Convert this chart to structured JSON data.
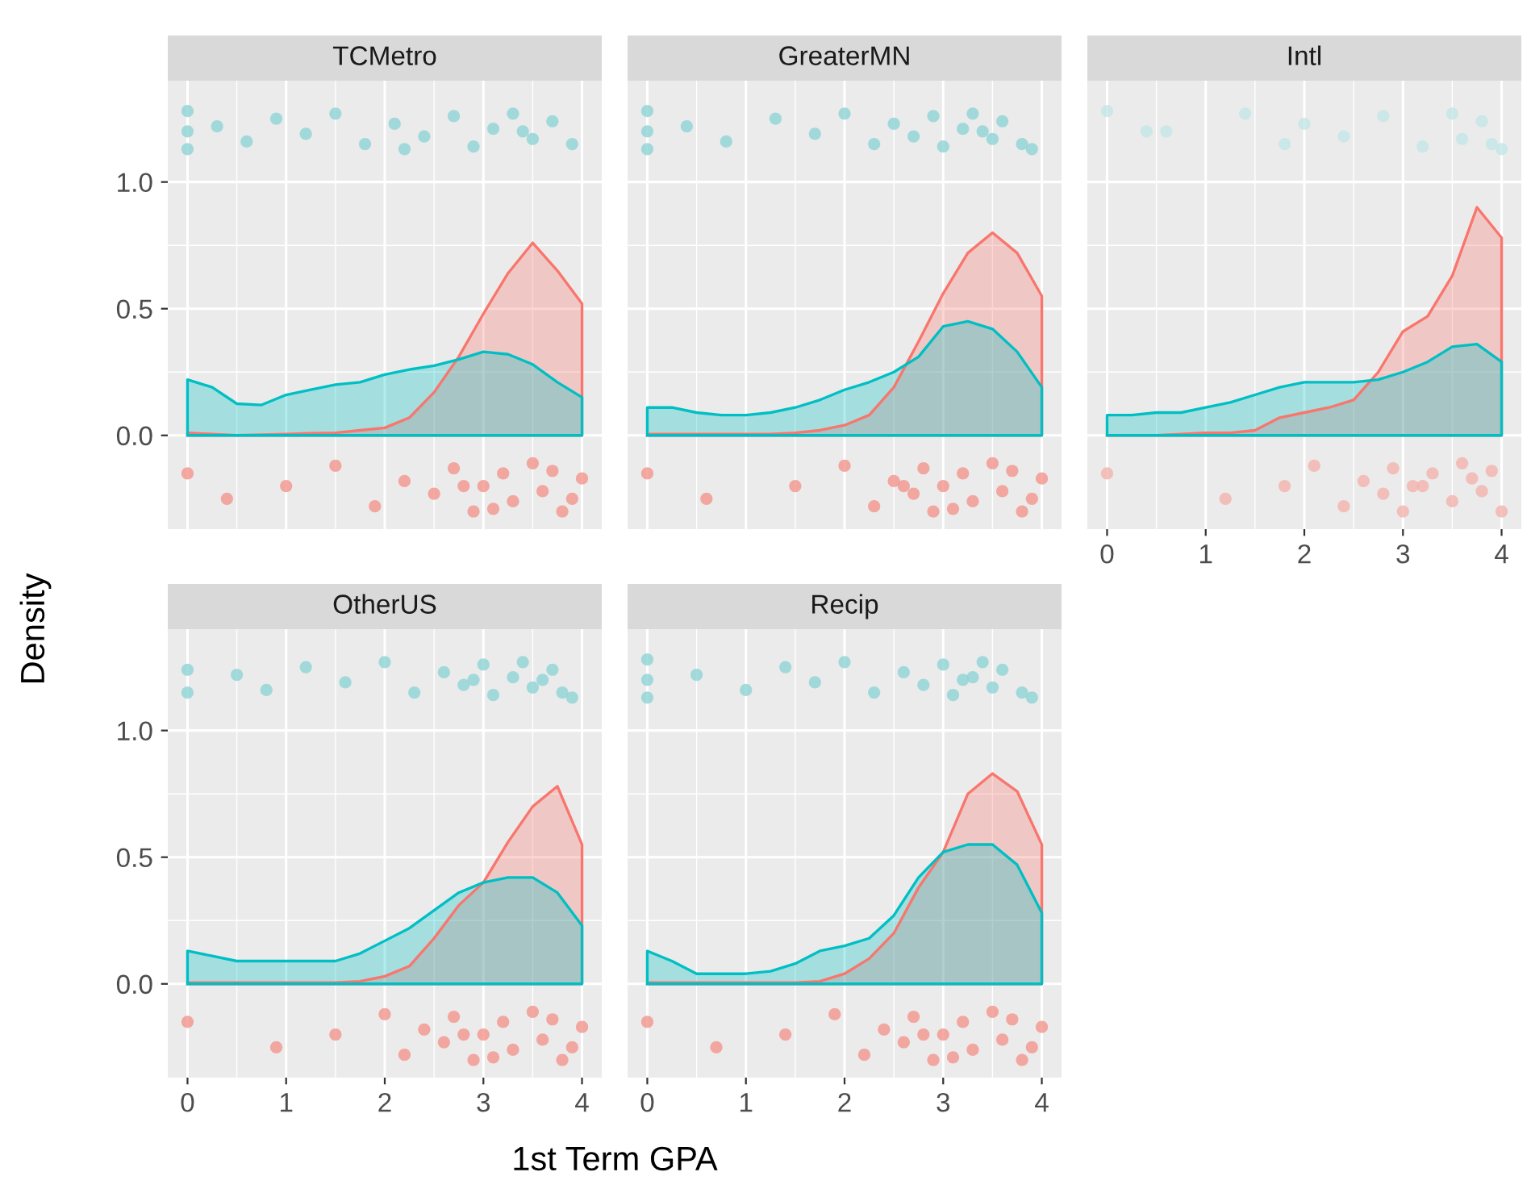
{
  "chart_data": [
    {
      "type": "area",
      "title": "TCMetro",
      "ylabel": "Density",
      "xlim": [
        -0.2,
        4.2
      ],
      "ylim": [
        -0.37,
        1.4
      ],
      "xticks": [
        0,
        1,
        2,
        3,
        4
      ],
      "yticks": [
        {
          "value": 0,
          "label": "0.0"
        },
        {
          "value": 0.5,
          "label": "0.5"
        },
        {
          "value": 1,
          "label": "1.0"
        }
      ],
      "tick_labels": "y",
      "grid": true,
      "series": [
        {
          "type": "area",
          "color": "#f8766d",
          "x": [
            0,
            0.25,
            0.5,
            0.75,
            1,
            1.25,
            1.5,
            1.75,
            2,
            2.25,
            2.5,
            2.75,
            3,
            3.25,
            3.5,
            3.75,
            4
          ],
          "values": [
            0.01,
            0.005,
            0,
            0.003,
            0.005,
            0.008,
            0.01,
            0.02,
            0.03,
            0.07,
            0.17,
            0.31,
            0.48,
            0.64,
            0.76,
            0.65,
            0.52
          ]
        },
        {
          "type": "area",
          "color": "#00bfc4",
          "x": [
            0,
            0.25,
            0.5,
            0.75,
            1,
            1.25,
            1.5,
            1.75,
            2,
            2.25,
            2.5,
            2.75,
            3,
            3.25,
            3.5,
            3.75,
            4
          ],
          "values": [
            0.22,
            0.19,
            0.125,
            0.12,
            0.16,
            0.18,
            0.2,
            0.21,
            0.24,
            0.26,
            0.275,
            0.3,
            0.33,
            0.32,
            0.28,
            0.21,
            0.15
          ]
        },
        {
          "type": "scatter",
          "color": "#8fd5d7",
          "x": [
            0,
            0,
            0,
            0.3,
            0.6,
            0.9,
            1.2,
            1.5,
            1.8,
            2.1,
            2.4,
            2.7,
            2.9,
            3.1,
            3.3,
            3.5,
            3.7,
            3.9,
            2.2,
            3.4
          ],
          "values": [
            1.28,
            1.2,
            1.13,
            1.22,
            1.16,
            1.25,
            1.19,
            1.27,
            1.15,
            1.23,
            1.18,
            1.26,
            1.14,
            1.21,
            1.27,
            1.17,
            1.24,
            1.15,
            1.13,
            1.2
          ]
        },
        {
          "type": "scatter",
          "color": "#f4958d",
          "x": [
            0,
            0.4,
            1.0,
            1.5,
            1.9,
            2.2,
            2.5,
            2.7,
            2.9,
            3.0,
            3.2,
            3.3,
            3.5,
            3.6,
            3.8,
            4.0,
            2.8,
            3.7,
            3.1,
            3.9
          ],
          "values": [
            -0.15,
            -0.25,
            -0.2,
            -0.12,
            -0.28,
            -0.18,
            -0.23,
            -0.13,
            -0.3,
            -0.2,
            -0.15,
            -0.26,
            -0.11,
            -0.22,
            -0.3,
            -0.17,
            -0.2,
            -0.14,
            -0.29,
            -0.25
          ]
        }
      ]
    },
    {
      "type": "area",
      "title": "GreaterMN",
      "xlim": [
        -0.2,
        4.2
      ],
      "ylim": [
        -0.37,
        1.4
      ],
      "xticks": [
        0,
        1,
        2,
        3,
        4
      ],
      "yticks": [
        0,
        0.5,
        1
      ],
      "tick_labels": false,
      "grid": true,
      "series": [
        {
          "type": "area",
          "color": "#f8766d",
          "x": [
            0,
            0.25,
            0.5,
            0.75,
            1,
            1.25,
            1.5,
            1.75,
            2,
            2.25,
            2.5,
            2.75,
            3,
            3.25,
            3.5,
            3.75,
            4
          ],
          "values": [
            0.005,
            0.005,
            0.005,
            0.005,
            0.005,
            0.005,
            0.01,
            0.02,
            0.04,
            0.08,
            0.19,
            0.37,
            0.56,
            0.72,
            0.8,
            0.72,
            0.55
          ]
        },
        {
          "type": "area",
          "color": "#00bfc4",
          "x": [
            0,
            0.25,
            0.5,
            0.75,
            1,
            1.25,
            1.5,
            1.75,
            2,
            2.25,
            2.5,
            2.75,
            3,
            3.25,
            3.5,
            3.75,
            4
          ],
          "values": [
            0.11,
            0.11,
            0.09,
            0.08,
            0.08,
            0.09,
            0.11,
            0.14,
            0.18,
            0.21,
            0.25,
            0.31,
            0.43,
            0.45,
            0.42,
            0.33,
            0.19
          ]
        },
        {
          "type": "scatter",
          "color": "#8fd5d7",
          "x": [
            0,
            0,
            0,
            0.4,
            0.8,
            1.3,
            1.7,
            2.0,
            2.3,
            2.5,
            2.7,
            2.9,
            3.0,
            3.2,
            3.3,
            3.5,
            3.6,
            3.8,
            3.9,
            3.4
          ],
          "values": [
            1.28,
            1.2,
            1.13,
            1.22,
            1.16,
            1.25,
            1.19,
            1.27,
            1.15,
            1.23,
            1.18,
            1.26,
            1.14,
            1.21,
            1.27,
            1.17,
            1.24,
            1.15,
            1.13,
            1.2
          ]
        },
        {
          "type": "scatter",
          "color": "#f4958d",
          "x": [
            0,
            0.6,
            1.5,
            2.0,
            2.3,
            2.5,
            2.7,
            2.8,
            2.9,
            3.0,
            3.2,
            3.3,
            3.5,
            3.6,
            3.8,
            4.0,
            2.6,
            3.7,
            3.1,
            3.9
          ],
          "values": [
            -0.15,
            -0.25,
            -0.2,
            -0.12,
            -0.28,
            -0.18,
            -0.23,
            -0.13,
            -0.3,
            -0.2,
            -0.15,
            -0.26,
            -0.11,
            -0.22,
            -0.3,
            -0.17,
            -0.2,
            -0.14,
            -0.29,
            -0.25
          ]
        }
      ]
    },
    {
      "type": "area",
      "title": "Intl",
      "xlim": [
        -0.2,
        4.2
      ],
      "ylim": [
        -0.37,
        1.4
      ],
      "xticks": [
        0,
        1,
        2,
        3,
        4
      ],
      "yticks": [
        0,
        0.5,
        1
      ],
      "tick_labels": "x",
      "grid": true,
      "series": [
        {
          "type": "area",
          "color": "#f8766d",
          "x": [
            0,
            0.25,
            0.5,
            0.75,
            1,
            1.25,
            1.5,
            1.75,
            2,
            2.25,
            2.5,
            2.75,
            3,
            3.25,
            3.5,
            3.75,
            4
          ],
          "values": [
            0,
            0,
            0,
            0.005,
            0.01,
            0.01,
            0.02,
            0.07,
            0.09,
            0.11,
            0.14,
            0.25,
            0.41,
            0.47,
            0.63,
            0.9,
            0.78
          ]
        },
        {
          "type": "area",
          "color": "#00bfc4",
          "x": [
            0,
            0.25,
            0.5,
            0.75,
            1,
            1.25,
            1.5,
            1.75,
            2,
            2.25,
            2.5,
            2.75,
            3,
            3.25,
            3.5,
            3.75,
            4
          ],
          "values": [
            0.08,
            0.08,
            0.09,
            0.09,
            0.11,
            0.13,
            0.16,
            0.19,
            0.21,
            0.21,
            0.21,
            0.22,
            0.25,
            0.29,
            0.35,
            0.36,
            0.29
          ]
        },
        {
          "type": "scatter",
          "color": "#c4e6e7",
          "x": [
            0,
            0.4,
            0.6,
            1.4,
            1.8,
            2.0,
            2.4,
            2.8,
            3.2,
            3.5,
            3.6,
            3.8,
            3.9,
            4.0
          ],
          "values": [
            1.28,
            1.2,
            1.2,
            1.27,
            1.15,
            1.23,
            1.18,
            1.26,
            1.14,
            1.27,
            1.17,
            1.24,
            1.15,
            1.13
          ]
        },
        {
          "type": "scatter",
          "color": "#f4b3ad",
          "x": [
            0,
            1.2,
            1.8,
            2.1,
            2.4,
            2.6,
            2.8,
            2.9,
            3.0,
            3.2,
            3.3,
            3.5,
            3.6,
            3.8,
            4.0,
            3.7,
            3.1,
            3.9
          ],
          "values": [
            -0.15,
            -0.25,
            -0.2,
            -0.12,
            -0.28,
            -0.18,
            -0.23,
            -0.13,
            -0.3,
            -0.2,
            -0.15,
            -0.26,
            -0.11,
            -0.22,
            -0.3,
            -0.17,
            -0.2,
            -0.14
          ]
        }
      ]
    },
    {
      "type": "area",
      "title": "OtherUS",
      "xlim": [
        -0.2,
        4.2
      ],
      "ylim": [
        -0.37,
        1.4
      ],
      "xticks": [
        0,
        1,
        2,
        3,
        4
      ],
      "yticks": [
        {
          "value": 0,
          "label": "0.0"
        },
        {
          "value": 0.5,
          "label": "0.5"
        },
        {
          "value": 1,
          "label": "1.0"
        }
      ],
      "grid": true,
      "series": [
        {
          "type": "area",
          "color": "#f8766d",
          "x": [
            0,
            0.25,
            0.5,
            0.75,
            1,
            1.25,
            1.5,
            1.75,
            2,
            2.25,
            2.5,
            2.75,
            3,
            3.25,
            3.5,
            3.75,
            4
          ],
          "values": [
            0.005,
            0.005,
            0.005,
            0.005,
            0.005,
            0.005,
            0.005,
            0.01,
            0.03,
            0.07,
            0.18,
            0.31,
            0.4,
            0.56,
            0.7,
            0.78,
            0.55
          ]
        },
        {
          "type": "area",
          "color": "#00bfc4",
          "x": [
            0,
            0.25,
            0.5,
            0.75,
            1,
            1.25,
            1.5,
            1.75,
            2,
            2.25,
            2.5,
            2.75,
            3,
            3.25,
            3.5,
            3.75,
            4
          ],
          "values": [
            0.13,
            0.11,
            0.09,
            0.09,
            0.09,
            0.09,
            0.09,
            0.12,
            0.17,
            0.22,
            0.29,
            0.36,
            0.4,
            0.42,
            0.42,
            0.36,
            0.23
          ]
        },
        {
          "type": "scatter",
          "color": "#8fd5d7",
          "x": [
            0,
            0,
            0.5,
            0.8,
            1.2,
            1.6,
            2.0,
            2.3,
            2.6,
            2.8,
            3.0,
            3.1,
            3.3,
            3.4,
            3.5,
            3.7,
            3.8,
            3.9,
            2.9,
            3.6
          ],
          "values": [
            1.24,
            1.15,
            1.22,
            1.16,
            1.25,
            1.19,
            1.27,
            1.15,
            1.23,
            1.18,
            1.26,
            1.14,
            1.21,
            1.27,
            1.17,
            1.24,
            1.15,
            1.13,
            1.2,
            1.2
          ]
        },
        {
          "type": "scatter",
          "color": "#f4958d",
          "x": [
            0,
            0.9,
            1.5,
            2.0,
            2.2,
            2.4,
            2.6,
            2.7,
            2.9,
            3.0,
            3.2,
            3.3,
            3.5,
            3.6,
            3.8,
            4.0,
            2.8,
            3.7,
            3.1,
            3.9
          ],
          "values": [
            -0.15,
            -0.25,
            -0.2,
            -0.12,
            -0.28,
            -0.18,
            -0.23,
            -0.13,
            -0.3,
            -0.2,
            -0.15,
            -0.26,
            -0.11,
            -0.22,
            -0.3,
            -0.17,
            -0.2,
            -0.14,
            -0.29,
            -0.25
          ]
        }
      ]
    },
    {
      "type": "area",
      "title": "Recip",
      "xlabel": "1st Term GPA",
      "xlim": [
        -0.2,
        4.2
      ],
      "ylim": [
        -0.37,
        1.4
      ],
      "xticks": [
        0,
        1,
        2,
        3,
        4
      ],
      "yticks": [
        0,
        0.5,
        1
      ],
      "tick_labels": "x",
      "grid": true,
      "series": [
        {
          "type": "area",
          "color": "#f8766d",
          "x": [
            0,
            0.25,
            0.5,
            0.75,
            1,
            1.25,
            1.5,
            1.75,
            2,
            2.25,
            2.5,
            2.75,
            3,
            3.25,
            3.5,
            3.75,
            4
          ],
          "values": [
            0.005,
            0.005,
            0.005,
            0.005,
            0.005,
            0.005,
            0.005,
            0.01,
            0.04,
            0.1,
            0.2,
            0.38,
            0.52,
            0.75,
            0.83,
            0.76,
            0.55
          ]
        },
        {
          "type": "area",
          "color": "#00bfc4",
          "x": [
            0,
            0.25,
            0.5,
            0.75,
            1,
            1.25,
            1.5,
            1.75,
            2,
            2.25,
            2.5,
            2.75,
            3,
            3.25,
            3.5,
            3.75,
            4
          ],
          "values": [
            0.13,
            0.09,
            0.04,
            0.04,
            0.04,
            0.05,
            0.08,
            0.13,
            0.15,
            0.18,
            0.27,
            0.42,
            0.52,
            0.55,
            0.55,
            0.47,
            0.28
          ]
        },
        {
          "type": "scatter",
          "color": "#8fd5d7",
          "x": [
            0,
            0,
            0,
            0.5,
            1.0,
            1.4,
            1.7,
            2.0,
            2.3,
            2.6,
            2.8,
            3.0,
            3.1,
            3.3,
            3.4,
            3.5,
            3.6,
            3.8,
            3.9,
            3.2
          ],
          "values": [
            1.28,
            1.2,
            1.13,
            1.22,
            1.16,
            1.25,
            1.19,
            1.27,
            1.15,
            1.23,
            1.18,
            1.26,
            1.14,
            1.21,
            1.27,
            1.17,
            1.24,
            1.15,
            1.13,
            1.2
          ]
        },
        {
          "type": "scatter",
          "color": "#f4958d",
          "x": [
            0,
            0.7,
            1.4,
            1.9,
            2.2,
            2.4,
            2.6,
            2.7,
            2.9,
            3.0,
            3.2,
            3.3,
            3.5,
            3.6,
            3.8,
            4.0,
            2.8,
            3.7,
            3.1,
            3.9
          ],
          "values": [
            -0.15,
            -0.25,
            -0.2,
            -0.12,
            -0.28,
            -0.18,
            -0.23,
            -0.13,
            -0.3,
            -0.2,
            -0.15,
            -0.26,
            -0.11,
            -0.22,
            -0.3,
            -0.17,
            -0.2,
            -0.14,
            -0.29,
            -0.25
          ]
        }
      ]
    }
  ]
}
